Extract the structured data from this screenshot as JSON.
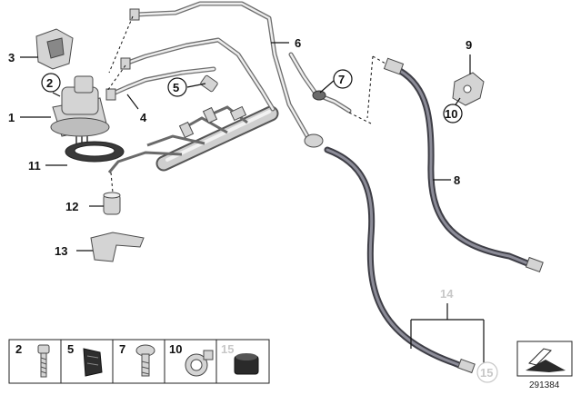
{
  "diagram": {
    "reference_number": "291384",
    "callouts": {
      "c1": "1",
      "c2": "2",
      "c3": "3",
      "c4": "4",
      "c5": "5",
      "c6": "6",
      "c7": "7",
      "c8": "8",
      "c9": "9",
      "c10": "10",
      "c11": "11",
      "c12": "12",
      "c13": "13",
      "c14": "14",
      "c15": "15"
    },
    "parts_strip": {
      "p2": "2",
      "p5": "5",
      "p7": "7",
      "p10": "10",
      "p15": "15"
    },
    "colors": {
      "line": "#111111",
      "faded_label": "#c8c8c8",
      "hose": "#3e3e46",
      "pipe": "#6f6f6f"
    }
  }
}
